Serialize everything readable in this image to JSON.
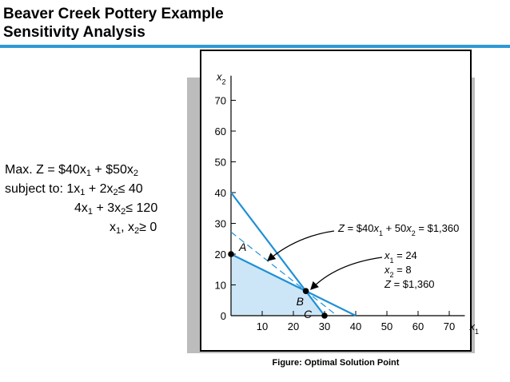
{
  "header": {
    "title_line1": "Beaver Creek Pottery Example",
    "title_line2": "Sensitivity Analysis",
    "rule_color": "#2e9ad6"
  },
  "model": {
    "objective": {
      "prefix": "Max. Z = $40x",
      "s1": "1",
      "mid": " + $50x",
      "s2": "2"
    },
    "constraint1": {
      "prefix": "subject to:  1x",
      "s1": "1",
      "mid": " + 2x",
      "s2": "2",
      "rel": "≤",
      "rhs": " 40"
    },
    "constraint2": {
      "prefix": "4x",
      "s1": "1",
      "mid": " + 3x",
      "s2": "2",
      "rel": "≤",
      "rhs": " 120"
    },
    "nonneg": {
      "prefix": "x",
      "s1": "1",
      "mid": ", x",
      "s2": "2",
      "rel": "≥",
      "rhs": " 0"
    }
  },
  "chart_data": {
    "type": "line",
    "x_axis": {
      "label": "x",
      "subscript": "1",
      "range": [
        0,
        75
      ],
      "ticks": [
        10,
        20,
        30,
        40,
        50,
        60,
        70
      ]
    },
    "y_axis": {
      "label": "x",
      "subscript": "2",
      "range": [
        0,
        78
      ],
      "ticks": [
        0,
        10,
        20,
        30,
        40,
        50,
        60,
        70
      ]
    },
    "constraint_lines": [
      {
        "from": [
          0,
          40
        ],
        "to": [
          30,
          0
        ]
      },
      {
        "from": [
          0,
          20
        ],
        "to": [
          40,
          0
        ]
      }
    ],
    "objective_line": {
      "from": [
        0,
        27.2
      ],
      "to": [
        34,
        0
      ],
      "style": "dashed"
    },
    "feasible_region": [
      [
        0,
        0
      ],
      [
        0,
        20
      ],
      [
        24,
        8
      ],
      [
        30,
        0
      ]
    ],
    "points": [
      {
        "name": "A",
        "x": 0,
        "y": 20
      },
      {
        "name": "B",
        "x": 24,
        "y": 8
      },
      {
        "name": "C",
        "x": 30,
        "y": 0
      }
    ],
    "annotation_objective": {
      "text_z": "Z",
      "text_rest1": " = $40",
      "x1": "x",
      "sub1": "1",
      "text_rest2": " + 50",
      "x2": "x",
      "sub2": "2",
      "text_rest3": " = $1,360"
    },
    "annotation_solution": {
      "line1": {
        "var": "x",
        "sub": "1",
        "rest": " = 24"
      },
      "line2": {
        "var": "x",
        "sub": "2",
        "rest": " = 8"
      },
      "line3": {
        "var": "Z",
        "rest": " = $1,360"
      }
    },
    "colors": {
      "line": "#1e90d6",
      "region": "#cde6f7",
      "axis": "#000000"
    }
  },
  "caption": "Figure: Optimal Solution Point"
}
